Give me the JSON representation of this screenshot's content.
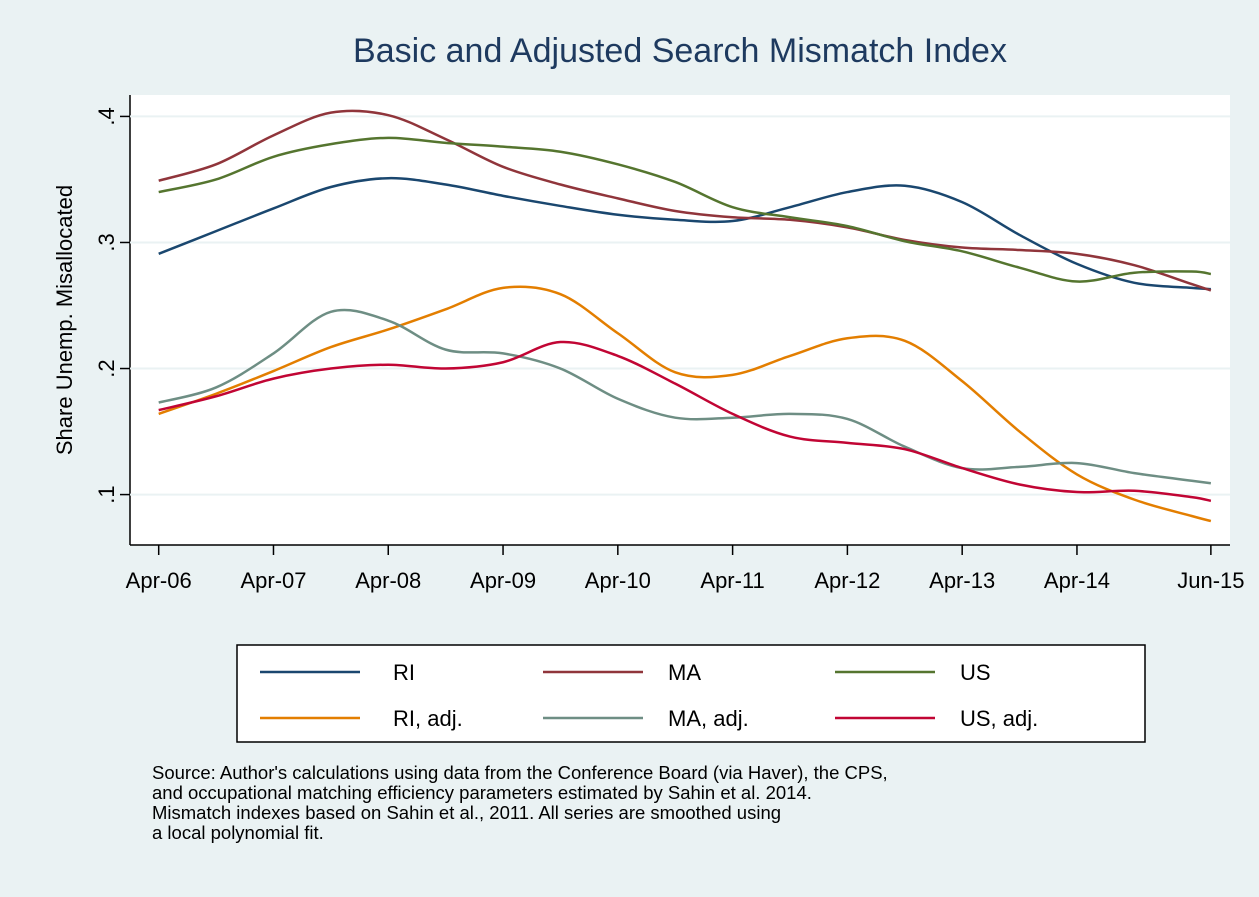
{
  "chart_data": {
    "type": "line",
    "title": "Basic and Adjusted Search Mismatch Index",
    "y_label": "Share Unemp. Misallocated",
    "x": [
      "2006-04",
      "2006-10",
      "2007-04",
      "2007-10",
      "2008-04",
      "2008-10",
      "2009-04",
      "2009-10",
      "2010-04",
      "2010-10",
      "2011-04",
      "2011-10",
      "2012-04",
      "2012-10",
      "2013-04",
      "2013-10",
      "2014-04",
      "2014-10",
      "2015-04",
      "2015-06"
    ],
    "xlim": [
      "2006-01",
      "2015-08"
    ],
    "xticks": [
      {
        "value": "2006-04",
        "label": "Apr-06"
      },
      {
        "value": "2007-04",
        "label": "Apr-07"
      },
      {
        "value": "2008-04",
        "label": "Apr-08"
      },
      {
        "value": "2009-04",
        "label": "Apr-09"
      },
      {
        "value": "2010-04",
        "label": "Apr-10"
      },
      {
        "value": "2011-04",
        "label": "Apr-11"
      },
      {
        "value": "2012-04",
        "label": "Apr-12"
      },
      {
        "value": "2013-04",
        "label": "Apr-13"
      },
      {
        "value": "2014-04",
        "label": "Apr-14"
      },
      {
        "value": "2015-06",
        "label": "Jun-15"
      }
    ],
    "ylim": [
      0.06,
      0.417
    ],
    "yticks": [
      {
        "value": 0.1,
        "label": ".1"
      },
      {
        "value": 0.2,
        "label": ".2"
      },
      {
        "value": 0.3,
        "label": ".3"
      },
      {
        "value": 0.4,
        "label": ".4"
      }
    ],
    "grid": true,
    "legend": "bottom",
    "series": [
      {
        "name": "RI",
        "color": "#1a476f",
        "values": [
          0.291,
          0.309,
          0.327,
          0.344,
          0.351,
          0.346,
          0.337,
          0.329,
          0.322,
          0.318,
          0.317,
          0.328,
          0.34,
          0.345,
          0.332,
          0.306,
          0.283,
          0.268,
          0.264,
          0.263
        ]
      },
      {
        "name": "MA",
        "color": "#90353b",
        "values": [
          0.349,
          0.362,
          0.385,
          0.403,
          0.401,
          0.382,
          0.36,
          0.346,
          0.335,
          0.325,
          0.32,
          0.318,
          0.312,
          0.302,
          0.296,
          0.294,
          0.291,
          0.282,
          0.267,
          0.262
        ]
      },
      {
        "name": "US",
        "color": "#55752f",
        "values": [
          0.34,
          0.35,
          0.368,
          0.378,
          0.383,
          0.379,
          0.376,
          0.372,
          0.362,
          0.348,
          0.328,
          0.32,
          0.313,
          0.301,
          0.293,
          0.28,
          0.269,
          0.276,
          0.277,
          0.275
        ]
      },
      {
        "name": "RI, adj.",
        "color": "#e37e00",
        "values": [
          0.164,
          0.18,
          0.198,
          0.217,
          0.231,
          0.247,
          0.264,
          0.259,
          0.228,
          0.197,
          0.195,
          0.21,
          0.224,
          0.222,
          0.19,
          0.15,
          0.116,
          0.096,
          0.083,
          0.079
        ]
      },
      {
        "name": "MA, adj.",
        "color": "#6e8e84",
        "values": [
          0.173,
          0.185,
          0.212,
          0.245,
          0.238,
          0.215,
          0.212,
          0.2,
          0.176,
          0.161,
          0.161,
          0.164,
          0.16,
          0.138,
          0.121,
          0.122,
          0.125,
          0.117,
          0.111,
          0.109
        ]
      },
      {
        "name": "US, adj.",
        "color": "#c10534",
        "values": [
          0.167,
          0.178,
          0.192,
          0.2,
          0.203,
          0.2,
          0.205,
          0.221,
          0.21,
          0.188,
          0.164,
          0.146,
          0.141,
          0.136,
          0.121,
          0.108,
          0.102,
          0.103,
          0.098,
          0.095
        ]
      }
    ],
    "note": [
      "Source: Author's calculations using data from the Conference Board (via Haver), the CPS,",
      "and occupational matching efficiency parameters estimated by Sahin et al. 2014.",
      "Mismatch indexes based on Sahin et al., 2011. All series are smoothed using",
      "a local polynomial fit."
    ]
  }
}
